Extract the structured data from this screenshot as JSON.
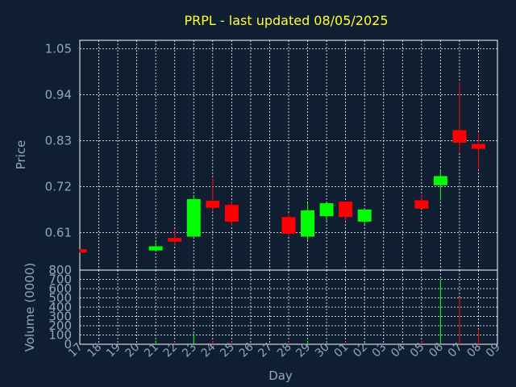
{
  "chart_data": {
    "type": "candlestick",
    "title": "PRPL - last updated 08/05/2025",
    "price_panel": {
      "ylabel": "Price",
      "yticks": [
        "1.05",
        "0.94",
        "0.83",
        "0.72",
        "0.61"
      ],
      "ylim": [
        0.52,
        1.07
      ]
    },
    "volume_panel": {
      "ylabel": "Volume (0000)",
      "yticks": [
        "800",
        "700",
        "600",
        "500",
        "400",
        "300",
        "200",
        "100",
        "0"
      ],
      "ylim": [
        0,
        800
      ]
    },
    "xlabel": "Day",
    "x_ticks": [
      "17",
      "18",
      "19",
      "20",
      "21",
      "22",
      "23",
      "24",
      "25",
      "26",
      "27",
      "28",
      "29",
      "30",
      "01",
      "02",
      "03",
      "04",
      "05",
      "06",
      "07",
      "08",
      "09"
    ],
    "colors": {
      "up": "#00ff00",
      "down": "#ff0000",
      "grid": "#ffffff",
      "background": "#0f1e31",
      "title": "#ffff33",
      "axis_text": "#8fa6c3"
    },
    "candles": [
      {
        "day": "17",
        "open": 0.57,
        "close": 0.562,
        "high": 0.57,
        "low": 0.562,
        "volume": 0
      },
      {
        "day": "21",
        "open": 0.567,
        "close": 0.577,
        "high": 0.587,
        "low": 0.567,
        "volume": 40
      },
      {
        "day": "22",
        "open": 0.597,
        "close": 0.588,
        "high": 0.617,
        "low": 0.578,
        "volume": 30
      },
      {
        "day": "23",
        "open": 0.6,
        "close": 0.69,
        "high": 0.7,
        "low": 0.6,
        "volume": 120
      },
      {
        "day": "24",
        "open": 0.686,
        "close": 0.669,
        "high": 0.74,
        "low": 0.66,
        "volume": 40
      },
      {
        "day": "25",
        "open": 0.676,
        "close": 0.636,
        "high": 0.686,
        "low": 0.626,
        "volume": 30
      },
      {
        "day": "28",
        "open": 0.647,
        "close": 0.607,
        "high": 0.657,
        "low": 0.6,
        "volume": 30
      },
      {
        "day": "29",
        "open": 0.6,
        "close": 0.663,
        "high": 0.68,
        "low": 0.59,
        "volume": 40
      },
      {
        "day": "30",
        "open": 0.649,
        "close": 0.68,
        "high": 0.68,
        "low": 0.637,
        "volume": 30
      },
      {
        "day": "01",
        "open": 0.684,
        "close": 0.647,
        "high": 0.684,
        "low": 0.637,
        "volume": 30
      },
      {
        "day": "02",
        "open": 0.636,
        "close": 0.665,
        "high": 0.665,
        "low": 0.63,
        "volume": 20
      },
      {
        "day": "05",
        "open": 0.687,
        "close": 0.667,
        "high": 0.7,
        "low": 0.667,
        "volume": 40
      },
      {
        "day": "06",
        "open": 0.723,
        "close": 0.745,
        "high": 0.76,
        "low": 0.687,
        "volume": 700
      },
      {
        "day": "07",
        "open": 0.855,
        "close": 0.825,
        "high": 0.97,
        "low": 0.8,
        "volume": 500
      },
      {
        "day": "08",
        "open": 0.822,
        "close": 0.81,
        "high": 0.849,
        "low": 0.76,
        "volume": 160
      }
    ]
  }
}
